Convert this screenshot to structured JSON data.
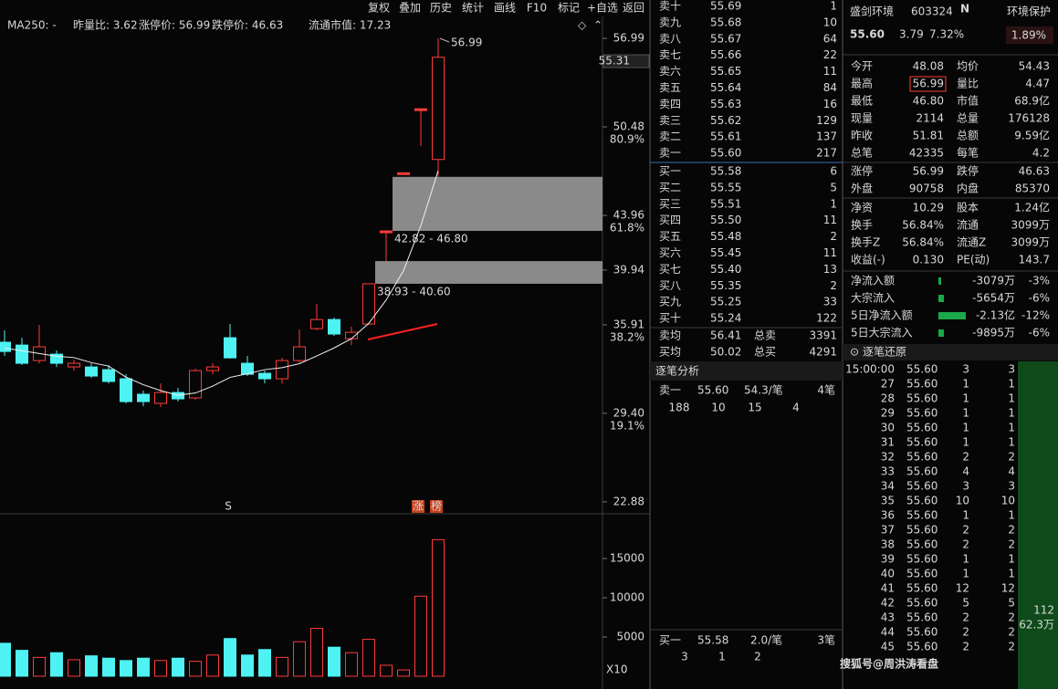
{
  "toolbar": [
    "复权",
    "叠加",
    "历史",
    "统计",
    "画线",
    "F10",
    "标记",
    "+自选",
    "返回"
  ],
  "legend": [
    {
      "text": "MA250: -",
      "color": "#e6e6e6"
    },
    {
      "text": "昨量比: 3.62",
      "color": "#ff4040"
    },
    {
      "text": "涨停价: 56.99",
      "color": "#ff4040"
    },
    {
      "text": "跌停价: 46.63",
      "color": "#22d822"
    },
    {
      "text": "流通市值: 17.23",
      "color": "#ff4040"
    }
  ],
  "chart_data": {
    "type": "candlestick",
    "open": [
      34.63,
      34.42,
      33.28,
      33.75,
      32.81,
      32.81,
      32.61,
      31.94,
      30.8,
      30.13,
      30.93,
      30.53,
      32.54,
      34.96,
      33.08,
      32.34,
      31.94,
      33.28,
      35.63,
      36.3,
      34.89,
      35.97,
      42.82,
      47.1,
      51.81,
      48.08
    ],
    "high": [
      35.5,
      34.96,
      35.9,
      34.02,
      33.35,
      33.08,
      32.95,
      32.27,
      31.07,
      31.6,
      31.27,
      32.68,
      33.08,
      35.97,
      33.62,
      32.54,
      33.48,
      35.57,
      37.45,
      36.44,
      35.77,
      38.93,
      42.82,
      47.1,
      51.81,
      56.99
    ],
    "low": [
      33.62,
      32.95,
      33.08,
      32.81,
      32.54,
      32.01,
      31.6,
      30.13,
      29.92,
      29.86,
      30.26,
      30.39,
      32.27,
      33.42,
      32.14,
      31.6,
      31.6,
      33.15,
      35.5,
      35.09,
      34.42,
      35.9,
      40.6,
      47.1,
      49.07,
      46.8
    ],
    "close": [
      33.95,
      33.08,
      34.29,
      33.08,
      33.08,
      32.14,
      31.74,
      30.26,
      30.26,
      30.93,
      30.46,
      32.54,
      32.81,
      33.48,
      32.27,
      31.94,
      33.28,
      34.29,
      36.3,
      35.23,
      35.36,
      38.93,
      42.82,
      47.1,
      51.81,
      55.6
    ],
    "ma5": [
      34.2,
      34.0,
      33.8,
      33.6,
      33.5,
      33.13,
      32.87,
      32.06,
      31.5,
      31.07,
      30.73,
      30.89,
      31.4,
      32.04,
      32.31,
      32.61,
      32.76,
      33.05,
      33.62,
      34.21,
      34.89,
      36.02,
      37.73,
      39.89,
      43.2,
      47.25
    ],
    "up_color": "#ff3b3b",
    "down_color": "#4ef2f2",
    "ma5_color": "#f0f0f0",
    "ylim": [
      22.07,
      57.8
    ],
    "yticks": [
      56.99,
      50.48,
      43.96,
      39.94,
      35.91,
      {
        "value": 29.4,
        "label": "29.40"
      },
      22.88
    ],
    "fib_labels": [
      null,
      "80.9%",
      "61.8%",
      null,
      "38.2%",
      "19.1%",
      null
    ],
    "price_marker": 55.31,
    "high_label": 56.99,
    "gaps": [
      {
        "label": "42.82 - 46.80",
        "low": 42.82,
        "high": 46.8
      },
      {
        "label": "38.93 - 40.60",
        "low": 38.93,
        "high": 40.6
      }
    ],
    "markers": [
      "S",
      "涨",
      "榜"
    ],
    "volume": {
      "values": [
        4200,
        3300,
        2400,
        3000,
        2100,
        2600,
        2300,
        2000,
        2300,
        2000,
        2300,
        1900,
        2700,
        4800,
        2700,
        3400,
        2400,
        4400,
        6100,
        3700,
        3000,
        4700,
        1400,
        800,
        10200,
        17400
      ],
      "ylim": [
        0,
        20000
      ],
      "yticks": [
        15000,
        10000,
        5000
      ],
      "scale_label": "X10"
    }
  },
  "order_book": {
    "asks": [
      [
        "卖十",
        "55.69",
        "1"
      ],
      [
        "卖九",
        "55.68",
        "10"
      ],
      [
        "卖八",
        "55.67",
        "64"
      ],
      [
        "卖七",
        "55.66",
        "22"
      ],
      [
        "卖六",
        "55.65",
        "11"
      ],
      [
        "卖五",
        "55.64",
        "84"
      ],
      [
        "卖四",
        "55.63",
        "16"
      ],
      [
        "卖三",
        "55.62",
        "129"
      ],
      [
        "卖二",
        "55.61",
        "137"
      ],
      [
        "卖一",
        "55.60",
        "217"
      ]
    ],
    "bids": [
      [
        "买一",
        "55.58",
        "6"
      ],
      [
        "买二",
        "55.55",
        "5"
      ],
      [
        "买三",
        "55.51",
        "1"
      ],
      [
        "买四",
        "55.50",
        "11"
      ],
      [
        "买五",
        "55.48",
        "2"
      ],
      [
        "买六",
        "55.45",
        "11"
      ],
      [
        "买七",
        "55.40",
        "13"
      ],
      [
        "买八",
        "55.35",
        "2"
      ],
      [
        "买九",
        "55.25",
        "33"
      ],
      [
        "买十",
        "55.24",
        "122"
      ]
    ],
    "summary": [
      [
        "卖均",
        "56.41",
        "总卖",
        "3391"
      ],
      [
        "买均",
        "50.02",
        "总买",
        "4291"
      ]
    ]
  },
  "tick_analysis": {
    "title": "逐笔分析",
    "top": [
      "卖一",
      "55.60",
      "54.3/笔",
      "4笔"
    ],
    "top_orders": [
      "188",
      "10",
      "15",
      "4"
    ],
    "bottom": [
      "买一",
      "55.58",
      "2.0/笔",
      "3笔"
    ],
    "bottom_orders": [
      "3",
      "1",
      "2"
    ]
  },
  "quote": {
    "name": "盛剑环境",
    "code": "603324",
    "badge": "N",
    "sector": "环境保护",
    "sector_change": "1.89%",
    "price": "55.60",
    "change": "3.79",
    "change_pct": "7.32%"
  },
  "stats": [
    [
      {
        "label": "今开",
        "value": "48.08",
        "color": "#22d822"
      },
      {
        "label": "均价",
        "value": "54.43",
        "color": "#ff4040"
      }
    ],
    [
      {
        "label": "最高",
        "value": "56.99",
        "color": "#ff4040"
      },
      {
        "label": "量比",
        "value": "4.47",
        "color": "#e040e0"
      }
    ],
    [
      {
        "label": "最低",
        "value": "46.80",
        "color": "#22d822"
      },
      {
        "label": "市值",
        "value": "68.9亿",
        "color": "#e6e6e6"
      }
    ],
    [
      {
        "label": "现量",
        "value": "2114",
        "color": "#e040e0"
      },
      {
        "label": "总量",
        "value": "176128",
        "color": "#e6e6e6"
      }
    ],
    [
      {
        "label": "昨收",
        "value": "51.81",
        "color": "#e6e6e6"
      },
      {
        "label": "总额",
        "value": "9.59亿",
        "color": "#4a8cff"
      }
    ],
    [
      {
        "label": "总笔",
        "value": "42335",
        "color": "#e6e6e6"
      },
      {
        "label": "每笔",
        "value": "4.2",
        "color": "#e6e6e6"
      }
    ],
    [
      {
        "label": "涨停",
        "value": "56.99",
        "color": "#ff4040"
      },
      {
        "label": "跌停",
        "value": "46.63",
        "color": "#22d822"
      }
    ],
    [
      {
        "label": "外盘",
        "value": "90758",
        "color": "#ff4040"
      },
      {
        "label": "内盘",
        "value": "85370",
        "color": "#22d822"
      }
    ],
    [
      {
        "label": "净资",
        "value": "10.29",
        "color": "#e6e6e6"
      },
      {
        "label": "股本",
        "value": "1.24亿",
        "color": "#e6e6e6"
      }
    ],
    [
      {
        "label": "换手",
        "value": "56.84%",
        "color": "#e6e6e6"
      },
      {
        "label": "流通",
        "value": "3099万",
        "color": "#e6e6e6"
      }
    ],
    [
      {
        "label": "换手Z",
        "value": "56.84%",
        "color": "#e6e6e6"
      },
      {
        "label": "流通Z",
        "value": "3099万",
        "color": "#e6e6e6"
      }
    ],
    [
      {
        "label": "收益(-)",
        "value": "0.130",
        "color": "#e6e6e6"
      },
      {
        "label": "PE(动)",
        "value": "143.7",
        "color": "#e6e6e6"
      }
    ]
  ],
  "flows": [
    [
      "净流入额",
      "-3079万",
      "-3%"
    ],
    [
      "大宗流入",
      "-5654万",
      "-6%"
    ],
    [
      "5日净流入额",
      "-2.13亿",
      "-12%"
    ],
    [
      "5日大宗流入",
      "-9895万",
      "-6%"
    ]
  ],
  "trades": {
    "title": "逐笔还原",
    "rows": [
      [
        "15:00:00",
        "55.60",
        "3",
        "3"
      ],
      [
        "27",
        "55.60",
        "1",
        "1"
      ],
      [
        "28",
        "55.60",
        "1",
        "1"
      ],
      [
        "29",
        "55.60",
        "1",
        "1"
      ],
      [
        "30",
        "55.60",
        "1",
        "1"
      ],
      [
        "31",
        "55.60",
        "1",
        "1"
      ],
      [
        "32",
        "55.60",
        "2",
        "2"
      ],
      [
        "33",
        "55.60",
        "4",
        "4"
      ],
      [
        "34",
        "55.60",
        "3",
        "3"
      ],
      [
        "35",
        "55.60",
        "10",
        "10"
      ],
      [
        "36",
        "55.60",
        "1",
        "1"
      ],
      [
        "37",
        "55.60",
        "2",
        "2"
      ],
      [
        "38",
        "55.60",
        "2",
        "2"
      ],
      [
        "39",
        "55.60",
        "1",
        "1"
      ],
      [
        "40",
        "55.60",
        "1",
        "1"
      ],
      [
        "41",
        "55.60",
        "12",
        "12"
      ],
      [
        "42",
        "55.60",
        "5",
        "5"
      ],
      [
        "43",
        "55.60",
        "2",
        "2"
      ],
      [
        "44",
        "55.60",
        "2",
        "2"
      ],
      [
        "45",
        "55.60",
        "2",
        "2"
      ]
    ],
    "total_count": "112",
    "total_amount": "62.3万"
  },
  "watermark": "搜狐号@周洪涛看盘"
}
